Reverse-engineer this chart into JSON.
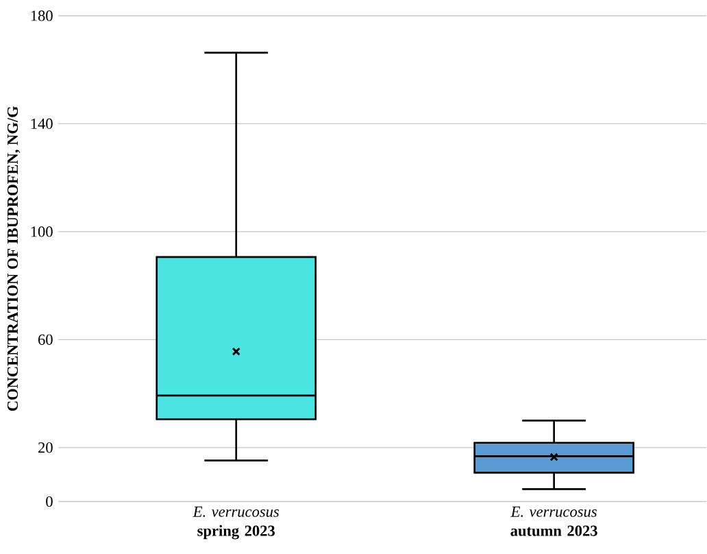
{
  "chart_data": {
    "type": "box",
    "ylabel": "CONCENTRATION OF IBUPROFEN, NG/G",
    "categories": [
      "*E. verrucosus* **spring 2023**",
      "*E. verrucosus* **autumn 2023**"
    ],
    "boxes": [
      {
        "low": 15.2,
        "q1": 30.5,
        "median": 39.3,
        "q3": 90.6,
        "high": 166.3,
        "mean": 55.6
      },
      {
        "low": 4.6,
        "q1": 10.7,
        "median": 16.8,
        "q3": 21.8,
        "high": 30,
        "mean": 16.5
      }
    ],
    "colors": [
      "#4ae4e3",
      "#5b9bd5"
    ],
    "ylim": [
      0,
      180
    ],
    "yticks": [
      0,
      20,
      60,
      100,
      140,
      180
    ],
    "grid": "y",
    "marker": "cross"
  }
}
